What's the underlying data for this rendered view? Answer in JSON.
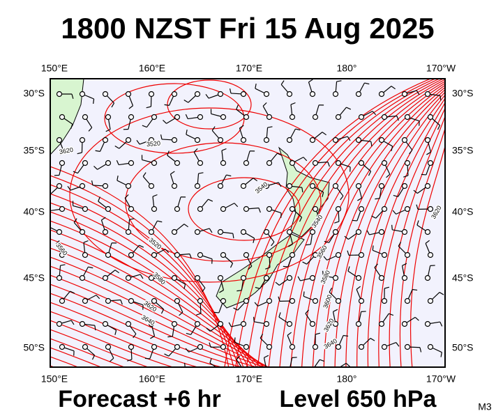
{
  "title": "1800 NZST Fri 15 Aug 2025",
  "lon_labels": [
    "150°E",
    "160°E",
    "170°E",
    "180°",
    "170°W"
  ],
  "lat_labels": [
    "30°S",
    "35°S",
    "40°S",
    "45°S",
    "50°S"
  ],
  "contour_labels": [
    "3620",
    "3520",
    "3540",
    "3540",
    "3560",
    "3580",
    "3600",
    "3620",
    "3640",
    "3620",
    "3520",
    "3560",
    "3580",
    "3620",
    "3640"
  ],
  "footer": {
    "forecast": "Forecast +6 hr",
    "level": "Level 650 hPa",
    "model": "M3"
  }
}
